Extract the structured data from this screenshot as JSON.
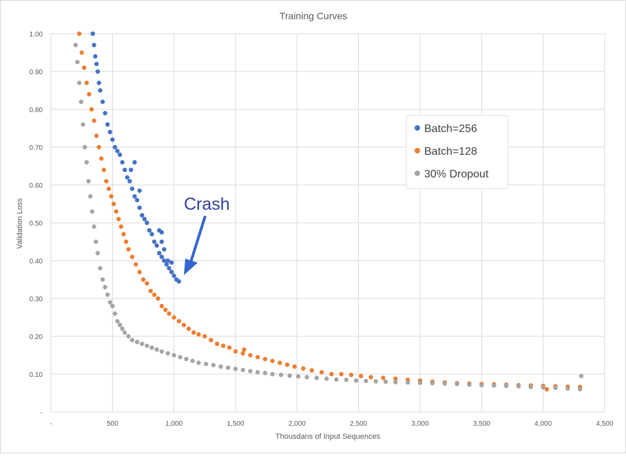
{
  "chart_data": {
    "type": "scatter",
    "title": "Training Curves",
    "xlabel": "Thousdans of Input Sequences",
    "ylabel": "Validation Loss",
    "xlim": [
      0,
      4500
    ],
    "ylim": [
      0,
      1.0
    ],
    "x_ticks": [
      "-",
      "500",
      "1,000",
      "1,500",
      "2,000",
      "2,500",
      "3,000",
      "3,500",
      "4,000",
      "4,500"
    ],
    "y_ticks": [
      "-",
      "0.10",
      "0.20",
      "0.30",
      "0.40",
      "0.50",
      "0.60",
      "0.70",
      "0.80",
      "0.90",
      "1.00"
    ],
    "grid": true,
    "legend_position": "right",
    "series": [
      {
        "name": "Batch=256",
        "color": "#4472c4",
        "points": [
          [
            340,
            1.0
          ],
          [
            350,
            0.97
          ],
          [
            360,
            0.94
          ],
          [
            370,
            0.92
          ],
          [
            380,
            0.9
          ],
          [
            390,
            0.87
          ],
          [
            400,
            0.85
          ],
          [
            420,
            0.82
          ],
          [
            440,
            0.79
          ],
          [
            460,
            0.76
          ],
          [
            480,
            0.74
          ],
          [
            500,
            0.72
          ],
          [
            520,
            0.7
          ],
          [
            540,
            0.69
          ],
          [
            560,
            0.68
          ],
          [
            580,
            0.66
          ],
          [
            600,
            0.64
          ],
          [
            620,
            0.62
          ],
          [
            640,
            0.61
          ],
          [
            660,
            0.59
          ],
          [
            680,
            0.57
          ],
          [
            700,
            0.56
          ],
          [
            720,
            0.54
          ],
          [
            740,
            0.52
          ],
          [
            760,
            0.51
          ],
          [
            780,
            0.5
          ],
          [
            800,
            0.48
          ],
          [
            820,
            0.47
          ],
          [
            840,
            0.45
          ],
          [
            860,
            0.44
          ],
          [
            880,
            0.42
          ],
          [
            900,
            0.41
          ],
          [
            920,
            0.4
          ],
          [
            940,
            0.39
          ],
          [
            960,
            0.38
          ],
          [
            980,
            0.37
          ],
          [
            1000,
            0.36
          ],
          [
            1020,
            0.35
          ],
          [
            1040,
            0.345
          ],
          [
            650,
            0.64
          ],
          [
            680,
            0.66
          ],
          [
            720,
            0.585
          ],
          [
            880,
            0.48
          ],
          [
            900,
            0.475
          ],
          [
            920,
            0.43
          ],
          [
            900,
            0.45
          ],
          [
            950,
            0.4
          ],
          [
            980,
            0.395
          ]
        ]
      },
      {
        "name": "Batch=128",
        "color": "#ed7d31",
        "points": [
          [
            230,
            1.0
          ],
          [
            250,
            0.95
          ],
          [
            270,
            0.91
          ],
          [
            290,
            0.87
          ],
          [
            310,
            0.84
          ],
          [
            330,
            0.8
          ],
          [
            350,
            0.77
          ],
          [
            370,
            0.73
          ],
          [
            390,
            0.7
          ],
          [
            410,
            0.67
          ],
          [
            430,
            0.64
          ],
          [
            450,
            0.61
          ],
          [
            470,
            0.59
          ],
          [
            490,
            0.57
          ],
          [
            510,
            0.55
          ],
          [
            530,
            0.53
          ],
          [
            550,
            0.51
          ],
          [
            570,
            0.49
          ],
          [
            590,
            0.47
          ],
          [
            610,
            0.45
          ],
          [
            630,
            0.43
          ],
          [
            660,
            0.41
          ],
          [
            690,
            0.39
          ],
          [
            720,
            0.37
          ],
          [
            750,
            0.35
          ],
          [
            780,
            0.34
          ],
          [
            810,
            0.32
          ],
          [
            840,
            0.31
          ],
          [
            870,
            0.3
          ],
          [
            900,
            0.28
          ],
          [
            930,
            0.27
          ],
          [
            960,
            0.26
          ],
          [
            1000,
            0.25
          ],
          [
            1040,
            0.24
          ],
          [
            1080,
            0.23
          ],
          [
            1120,
            0.22
          ],
          [
            1160,
            0.21
          ],
          [
            1200,
            0.205
          ],
          [
            1250,
            0.2
          ],
          [
            1300,
            0.19
          ],
          [
            1350,
            0.18
          ],
          [
            1400,
            0.175
          ],
          [
            1450,
            0.17
          ],
          [
            1500,
            0.16
          ],
          [
            1560,
            0.155
          ],
          [
            1620,
            0.15
          ],
          [
            1680,
            0.145
          ],
          [
            1740,
            0.14
          ],
          [
            1800,
            0.135
          ],
          [
            1860,
            0.13
          ],
          [
            1920,
            0.125
          ],
          [
            1980,
            0.12
          ],
          [
            2050,
            0.115
          ],
          [
            2120,
            0.11
          ],
          [
            2200,
            0.105
          ],
          [
            2280,
            0.1
          ],
          [
            2360,
            0.1
          ],
          [
            2440,
            0.098
          ],
          [
            2520,
            0.095
          ],
          [
            2600,
            0.092
          ],
          [
            2700,
            0.09
          ],
          [
            2800,
            0.088
          ],
          [
            2900,
            0.085
          ],
          [
            3000,
            0.083
          ],
          [
            3100,
            0.08
          ],
          [
            3200,
            0.078
          ],
          [
            3300,
            0.076
          ],
          [
            3400,
            0.075
          ],
          [
            3500,
            0.074
          ],
          [
            3600,
            0.073
          ],
          [
            3700,
            0.072
          ],
          [
            3800,
            0.071
          ],
          [
            3900,
            0.07
          ],
          [
            4000,
            0.069
          ],
          [
            4100,
            0.068
          ],
          [
            4200,
            0.067
          ],
          [
            4300,
            0.066
          ],
          [
            1570,
            0.165
          ],
          [
            4030,
            0.06
          ]
        ]
      },
      {
        "name": "30% Dropout",
        "color": "#a5a5a5",
        "points": [
          [
            200,
            0.97
          ],
          [
            215,
            0.925
          ],
          [
            230,
            0.87
          ],
          [
            245,
            0.82
          ],
          [
            260,
            0.76
          ],
          [
            275,
            0.7
          ],
          [
            290,
            0.66
          ],
          [
            305,
            0.61
          ],
          [
            320,
            0.57
          ],
          [
            335,
            0.53
          ],
          [
            350,
            0.49
          ],
          [
            365,
            0.45
          ],
          [
            380,
            0.42
          ],
          [
            400,
            0.38
          ],
          [
            420,
            0.35
          ],
          [
            440,
            0.33
          ],
          [
            460,
            0.31
          ],
          [
            480,
            0.29
          ],
          [
            500,
            0.28
          ],
          [
            520,
            0.26
          ],
          [
            540,
            0.24
          ],
          [
            560,
            0.23
          ],
          [
            580,
            0.22
          ],
          [
            600,
            0.21
          ],
          [
            630,
            0.2
          ],
          [
            660,
            0.19
          ],
          [
            700,
            0.185
          ],
          [
            740,
            0.18
          ],
          [
            780,
            0.175
          ],
          [
            820,
            0.17
          ],
          [
            860,
            0.165
          ],
          [
            900,
            0.16
          ],
          [
            950,
            0.155
          ],
          [
            1000,
            0.15
          ],
          [
            1050,
            0.145
          ],
          [
            1100,
            0.14
          ],
          [
            1150,
            0.135
          ],
          [
            1200,
            0.13
          ],
          [
            1260,
            0.127
          ],
          [
            1320,
            0.124
          ],
          [
            1380,
            0.12
          ],
          [
            1440,
            0.117
          ],
          [
            1500,
            0.114
          ],
          [
            1560,
            0.111
          ],
          [
            1620,
            0.108
          ],
          [
            1680,
            0.105
          ],
          [
            1740,
            0.103
          ],
          [
            1800,
            0.1
          ],
          [
            1870,
            0.098
          ],
          [
            1940,
            0.096
          ],
          [
            2010,
            0.094
          ],
          [
            2080,
            0.092
          ],
          [
            2160,
            0.09
          ],
          [
            2240,
            0.088
          ],
          [
            2320,
            0.086
          ],
          [
            2400,
            0.085
          ],
          [
            2480,
            0.083
          ],
          [
            2560,
            0.082
          ],
          [
            2640,
            0.081
          ],
          [
            2720,
            0.08
          ],
          [
            2800,
            0.079
          ],
          [
            2900,
            0.078
          ],
          [
            3000,
            0.077
          ],
          [
            3100,
            0.076
          ],
          [
            3200,
            0.075
          ],
          [
            3300,
            0.074
          ],
          [
            3400,
            0.072
          ],
          [
            3500,
            0.071
          ],
          [
            3600,
            0.07
          ],
          [
            3700,
            0.069
          ],
          [
            3800,
            0.068
          ],
          [
            3900,
            0.066
          ],
          [
            4000,
            0.065
          ],
          [
            4100,
            0.064
          ],
          [
            4200,
            0.062
          ],
          [
            4300,
            0.06
          ],
          [
            4310,
            0.095
          ]
        ]
      }
    ]
  },
  "annotation": {
    "text": "Crash",
    "color": "#2f3f9e",
    "arrow_color": "#3366cc"
  }
}
